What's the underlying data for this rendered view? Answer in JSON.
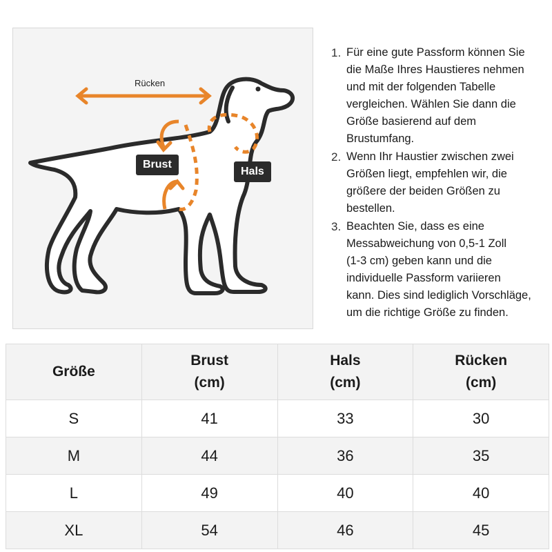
{
  "illustration": {
    "back_label": "Rücken",
    "chest_label": "Brust",
    "neck_label": "Hals",
    "accent_color": "#e8852a",
    "outline_color": "#2b2b2b"
  },
  "notes": [
    {
      "number": "1.",
      "lines": [
        "Für eine gute Passform können Sie",
        "die Maße Ihres Haustieres nehmen",
        "und mit der folgenden Tabelle",
        "vergleichen. Wählen Sie dann die",
        "Größe basierend auf dem",
        "Brustumfang."
      ]
    },
    {
      "number": "2.",
      "lines": [
        "Wenn Ihr Haustier zwischen zwei",
        "Größen liegt, empfehlen wir, die",
        "größere der beiden Größen zu",
        "bestellen."
      ]
    },
    {
      "number": "3.",
      "lines": [
        "Beachten Sie, dass es eine",
        "Messabweichung von 0,5-1 Zoll",
        "(1-3 cm) geben kann und die",
        "individuelle Passform variieren",
        "kann. Dies sind lediglich Vorschläge,",
        "um die richtige Größe zu finden."
      ]
    }
  ],
  "size_table": {
    "headers": [
      {
        "name": "Größe",
        "unit": ""
      },
      {
        "name": "Brust",
        "unit": "(cm)"
      },
      {
        "name": "Hals",
        "unit": "(cm)"
      },
      {
        "name": "Rücken",
        "unit": "(cm)"
      }
    ],
    "rows": [
      [
        "S",
        "41",
        "33",
        "30"
      ],
      [
        "M",
        "44",
        "36",
        "35"
      ],
      [
        "L",
        "49",
        "40",
        "40"
      ],
      [
        "XL",
        "54",
        "46",
        "45"
      ]
    ]
  }
}
